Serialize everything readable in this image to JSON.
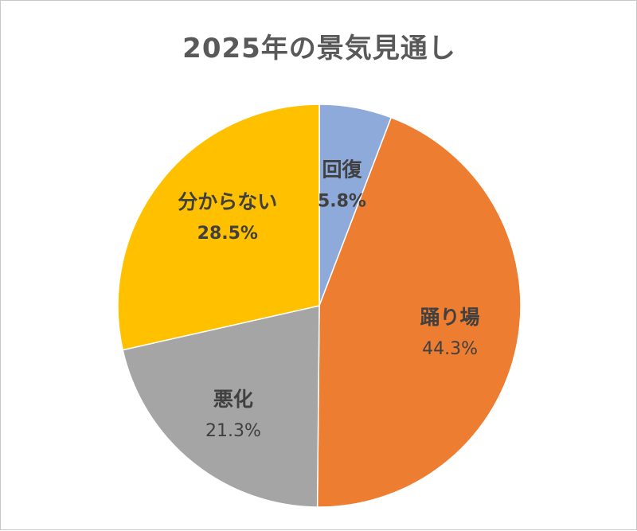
{
  "chart_data": {
    "type": "pie",
    "title": "2025年の景気見通し",
    "categories": [
      "回復",
      "踊り場",
      "悪化",
      "分からない"
    ],
    "values": [
      5.8,
      44.3,
      21.3,
      28.5
    ],
    "value_labels": [
      "5.8%",
      "44.3%",
      "21.3%",
      "28.5%"
    ],
    "colors": [
      "#8eaadb",
      "#ed7d31",
      "#a5a5a5",
      "#ffc000"
    ],
    "start_angle": "12 o'clock",
    "direction": "clockwise",
    "legend": "none"
  }
}
